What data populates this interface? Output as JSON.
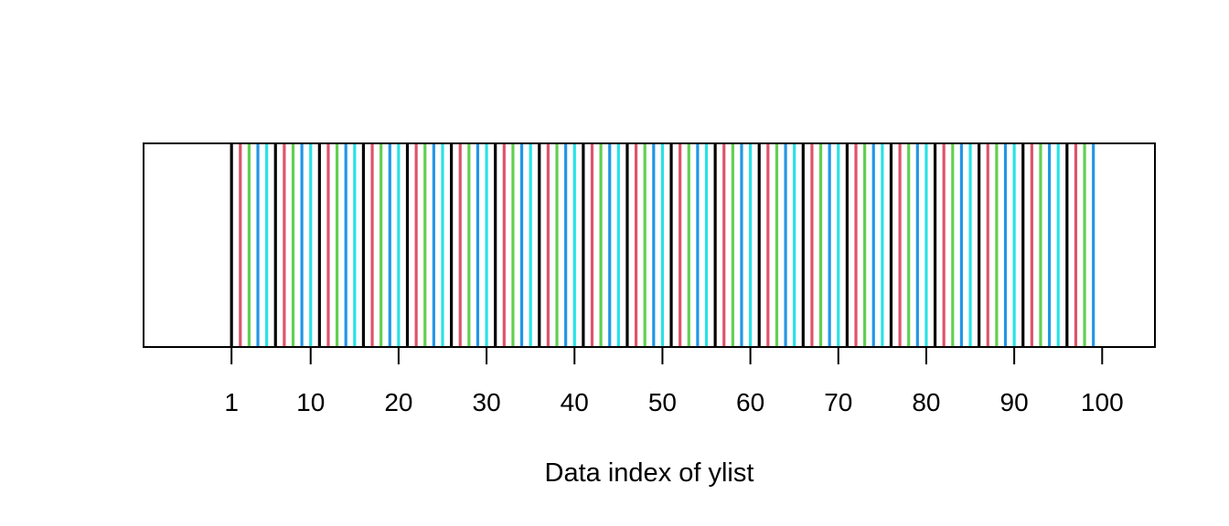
{
  "chart_data": {
    "type": "bar",
    "description_kind": "index strip",
    "xlabel": "Data index of ylist",
    "xlim": [
      -9,
      106
    ],
    "x_ticks": [
      1,
      10,
      20,
      30,
      40,
      50,
      60,
      70,
      80,
      90,
      100
    ],
    "x_tick_labels": [
      "1",
      "10",
      "20",
      "30",
      "40",
      "50",
      "60",
      "70",
      "80",
      "90",
      "100"
    ],
    "grid": false,
    "legend": "none",
    "color_cycle": [
      "#000000",
      "#DF536B",
      "#61D04F",
      "#2297E6",
      "#28E2E5"
    ],
    "indices": [
      1,
      2,
      3,
      4,
      5,
      6,
      7,
      8,
      9,
      10,
      11,
      12,
      13,
      14,
      15,
      16,
      17,
      18,
      19,
      20,
      21,
      22,
      23,
      24,
      25,
      26,
      27,
      28,
      29,
      30,
      31,
      32,
      33,
      34,
      35,
      36,
      37,
      38,
      39,
      40,
      41,
      42,
      43,
      44,
      45,
      46,
      47,
      48,
      49,
      50,
      51,
      52,
      53,
      54,
      55,
      56,
      57,
      58,
      59,
      60,
      61,
      62,
      63,
      64,
      65,
      66,
      67,
      68,
      69,
      70,
      71,
      72,
      73,
      74,
      75,
      76,
      77,
      78,
      79,
      80,
      81,
      82,
      83,
      84,
      85,
      86,
      87,
      88,
      89,
      90,
      91,
      92,
      93,
      94,
      95,
      96,
      97,
      98,
      99
    ]
  }
}
